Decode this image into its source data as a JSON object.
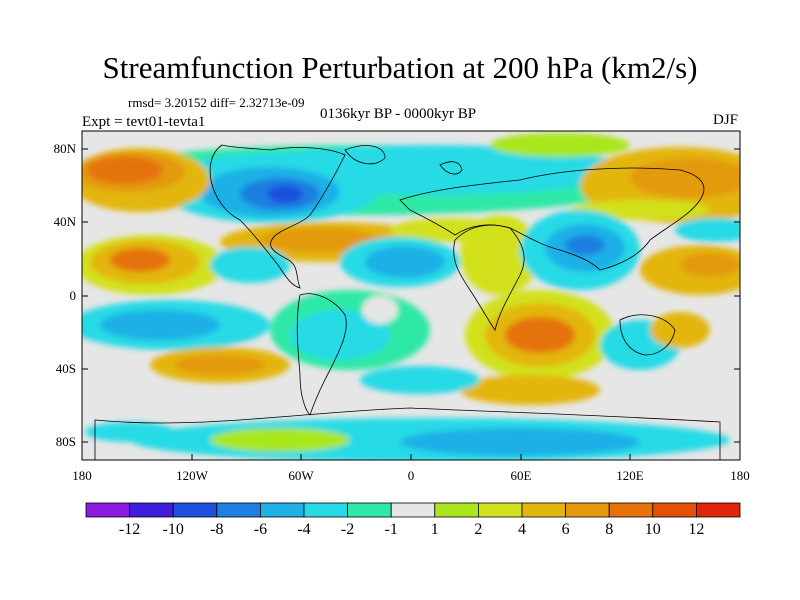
{
  "title": "Streamfunction Perturbation at 200 hPa (km2/s)",
  "stats_text": "rmsd= 3.20152 diff= 2.32713e-09",
  "experiment_text": "Expt = tevt01-tevta1",
  "period_text": "0136kyr BP - 0000kyr BP",
  "season_text": "DJF",
  "map": {
    "lat_ticks": [
      "80N",
      "40N",
      "0",
      "40S",
      "80S"
    ],
    "lon_ticks": [
      "180",
      "120W",
      "60W",
      "0",
      "60E",
      "120E",
      "180"
    ]
  },
  "colorbar": {
    "colors": [
      "#8a1be0",
      "#3f1ddb",
      "#1e50e0",
      "#1f7fe0",
      "#1fb0e6",
      "#27dae6",
      "#2ee8a6",
      "#e6e6e6",
      "#a9e61e",
      "#d2e11e",
      "#e3b60f",
      "#e39a0d",
      "#e57309",
      "#e35006",
      "#e1250a"
    ],
    "labels": [
      "-12",
      "-10",
      "-8",
      "-6",
      "-4",
      "-2",
      "-1",
      "1",
      "2",
      "4",
      "6",
      "8",
      "10",
      "12"
    ]
  },
  "colors": {
    "background": "#e6e6e6",
    "border": "#000000"
  }
}
